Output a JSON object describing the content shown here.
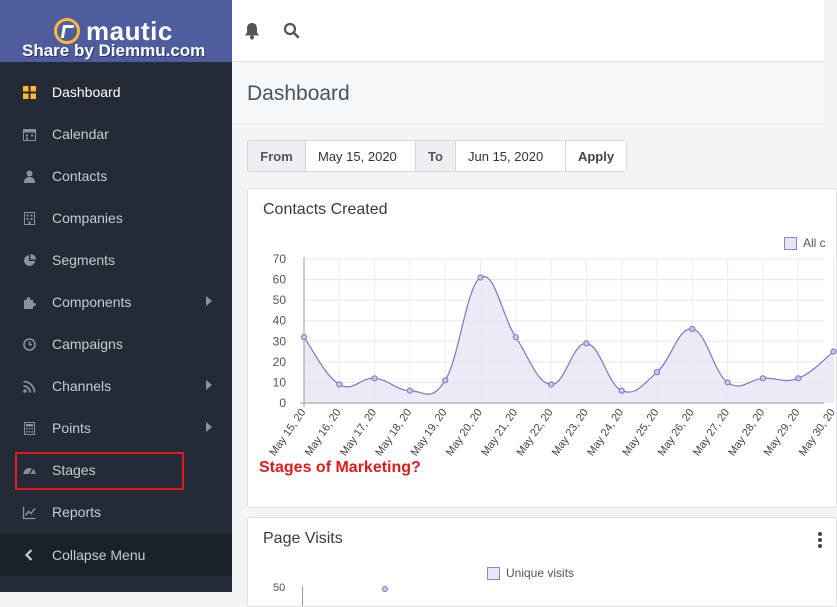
{
  "brand": {
    "name": "mautic",
    "watermark": "Share by Diemmu.com"
  },
  "sidebar": {
    "items": [
      {
        "label": "Dashboard",
        "icon": "dashboard-icon"
      },
      {
        "label": "Calendar",
        "icon": "calendar-icon"
      },
      {
        "label": "Contacts",
        "icon": "user-icon"
      },
      {
        "label": "Companies",
        "icon": "building-icon"
      },
      {
        "label": "Segments",
        "icon": "pie-chart-icon"
      },
      {
        "label": "Components",
        "icon": "puzzle-icon"
      },
      {
        "label": "Campaigns",
        "icon": "clock-icon"
      },
      {
        "label": "Channels",
        "icon": "rss-icon"
      },
      {
        "label": "Points",
        "icon": "calculator-icon"
      },
      {
        "label": "Stages",
        "icon": "gauge-icon"
      },
      {
        "label": "Reports",
        "icon": "line-chart-icon"
      }
    ],
    "collapse_label": "Collapse Menu"
  },
  "header": {
    "title": "Dashboard"
  },
  "daterange": {
    "from_label": "From",
    "from_value": "May 15, 2020",
    "to_label": "To",
    "to_value": "Jun 15, 2020",
    "apply_label": "Apply"
  },
  "contacts_panel": {
    "title": "Contacts Created",
    "legend": "All c"
  },
  "annotation": "Stages of Marketing?",
  "visits_panel": {
    "title": "Page Visits",
    "legend": "Unique visits",
    "first_tick": "50"
  },
  "colors": {
    "sidebar": "#242b36",
    "brand": "#4e5d9d",
    "accent": "#fdb933",
    "series_line": "#7b77c4",
    "series_fill": "#e8e6f4",
    "highlight": "#e11b1b"
  },
  "chart_data": {
    "type": "area",
    "title": "Contacts Created",
    "categories": [
      "May 15, 20",
      "May 16, 20",
      "May 17, 20",
      "May 18, 20",
      "May 19, 20",
      "May 20, 20",
      "May 21, 20",
      "May 22, 20",
      "May 23, 20",
      "May 24, 20",
      "May 25, 20",
      "May 26, 20",
      "May 27, 20",
      "May 28, 20",
      "May 29, 20",
      "May 30, 20"
    ],
    "series": [
      {
        "values": [
          32,
          9,
          12,
          6,
          11,
          61,
          32,
          9,
          29,
          6,
          15,
          36,
          10,
          12,
          12,
          25
        ]
      }
    ],
    "ylim": [
      0,
      70
    ],
    "yticks": [
      0,
      10,
      20,
      30,
      40,
      50,
      60,
      70
    ],
    "grid": true,
    "legend_position": "top-right"
  }
}
